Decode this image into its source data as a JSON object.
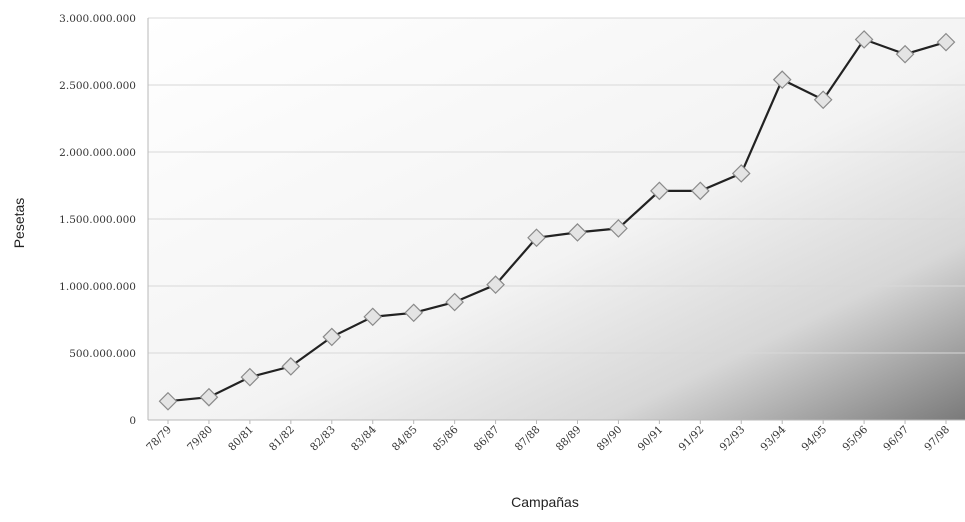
{
  "chart_data": {
    "type": "line",
    "title": "",
    "xlabel": "Campañas",
    "ylabel": "Pesetas",
    "ylim": [
      0,
      3000000000
    ],
    "y_ticks": [
      "0",
      "500.000.000",
      "1.000.000.000",
      "1.500.000.000",
      "2.000.000.000",
      "2.500.000.000",
      "3.000.000.000"
    ],
    "y_tick_values": [
      0,
      500000000,
      1000000000,
      1500000000,
      2000000000,
      2500000000,
      3000000000
    ],
    "grid": true,
    "legend": "none",
    "categories": [
      "78/79",
      "79/80",
      "80/81",
      "81/82",
      "82/83",
      "83/84",
      "84/85",
      "85/86",
      "86/87",
      "87/88",
      "88/89",
      "89/90",
      "90/91",
      "91/92",
      "92/93",
      "93/94",
      "94/95",
      "95/96",
      "96/97",
      "97/98"
    ],
    "series": [
      {
        "values": [
          140000000,
          170000000,
          320000000,
          400000000,
          620000000,
          770000000,
          800000000,
          880000000,
          1010000000,
          1360000000,
          1400000000,
          1430000000,
          1710000000,
          1710000000,
          1840000000,
          2540000000,
          2390000000,
          2840000000,
          2730000000,
          2820000000
        ]
      }
    ],
    "colors": {
      "line": "#222222",
      "marker_fill": "#e4e4e4",
      "marker_stroke": "#8a8a8a",
      "background_start": "#ffffff",
      "background_end": "#7a7a7a"
    }
  }
}
